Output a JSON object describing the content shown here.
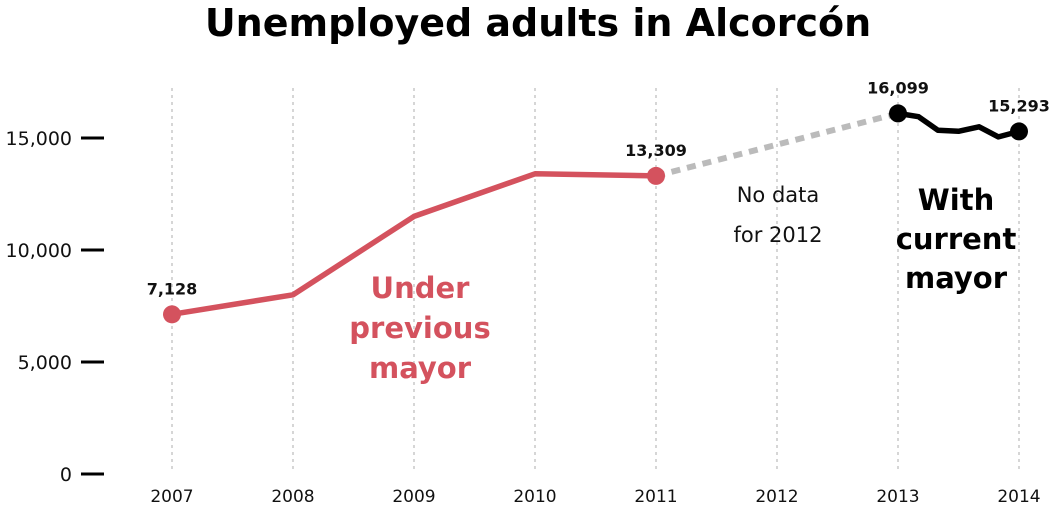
{
  "chart_data": {
    "type": "line",
    "title": "Unemployed adults in Alcorcón",
    "xlabel": "",
    "ylabel": "",
    "categories": [
      "2007",
      "2008",
      "2009",
      "2010",
      "2011",
      "2012",
      "2013",
      "2014"
    ],
    "yticks": [
      {
        "value": 0,
        "label": "0"
      },
      {
        "value": 5000,
        "label": "5,000"
      },
      {
        "value": 10000,
        "label": "10,000"
      },
      {
        "value": 15000,
        "label": "15,000"
      }
    ],
    "ylim": [
      0,
      17000
    ],
    "grid": "vertical dotted",
    "series": [
      {
        "color": "#d4525e",
        "points": [
          {
            "x": 2007,
            "y": 7128
          },
          {
            "x": 2008,
            "y": 8000
          },
          {
            "x": 2009,
            "y": 11500
          },
          {
            "x": 2010,
            "y": 13400
          },
          {
            "x": 2011,
            "y": 13309
          }
        ]
      },
      {
        "style": "dashed",
        "color": "#bbbbbb",
        "points": [
          {
            "x": 2011,
            "y": 13309
          },
          {
            "x": 2013,
            "y": 16099
          }
        ]
      },
      {
        "color": "#000000",
        "points": [
          {
            "x": 2013,
            "y": 16099
          },
          {
            "x": 2013.17,
            "y": 15950
          },
          {
            "x": 2013.33,
            "y": 15350
          },
          {
            "x": 2013.5,
            "y": 15300
          },
          {
            "x": 2013.67,
            "y": 15500
          },
          {
            "x": 2013.83,
            "y": 15050
          },
          {
            "x": 2014,
            "y": 15293
          }
        ]
      }
    ],
    "data_labels": [
      {
        "x": 2007,
        "y": 7128,
        "text": "7,128"
      },
      {
        "x": 2011,
        "y": 13309,
        "text": "13,309"
      },
      {
        "x": 2013,
        "y": 16099,
        "text": "16,099"
      },
      {
        "x": 2014,
        "y": 15293,
        "text": "15,293"
      }
    ],
    "annotations": {
      "no_data": [
        "No data",
        "for 2012"
      ],
      "previous_mayor": [
        "Under",
        "previous",
        "mayor"
      ],
      "current_mayor": [
        "With",
        "current",
        "mayor"
      ]
    }
  }
}
